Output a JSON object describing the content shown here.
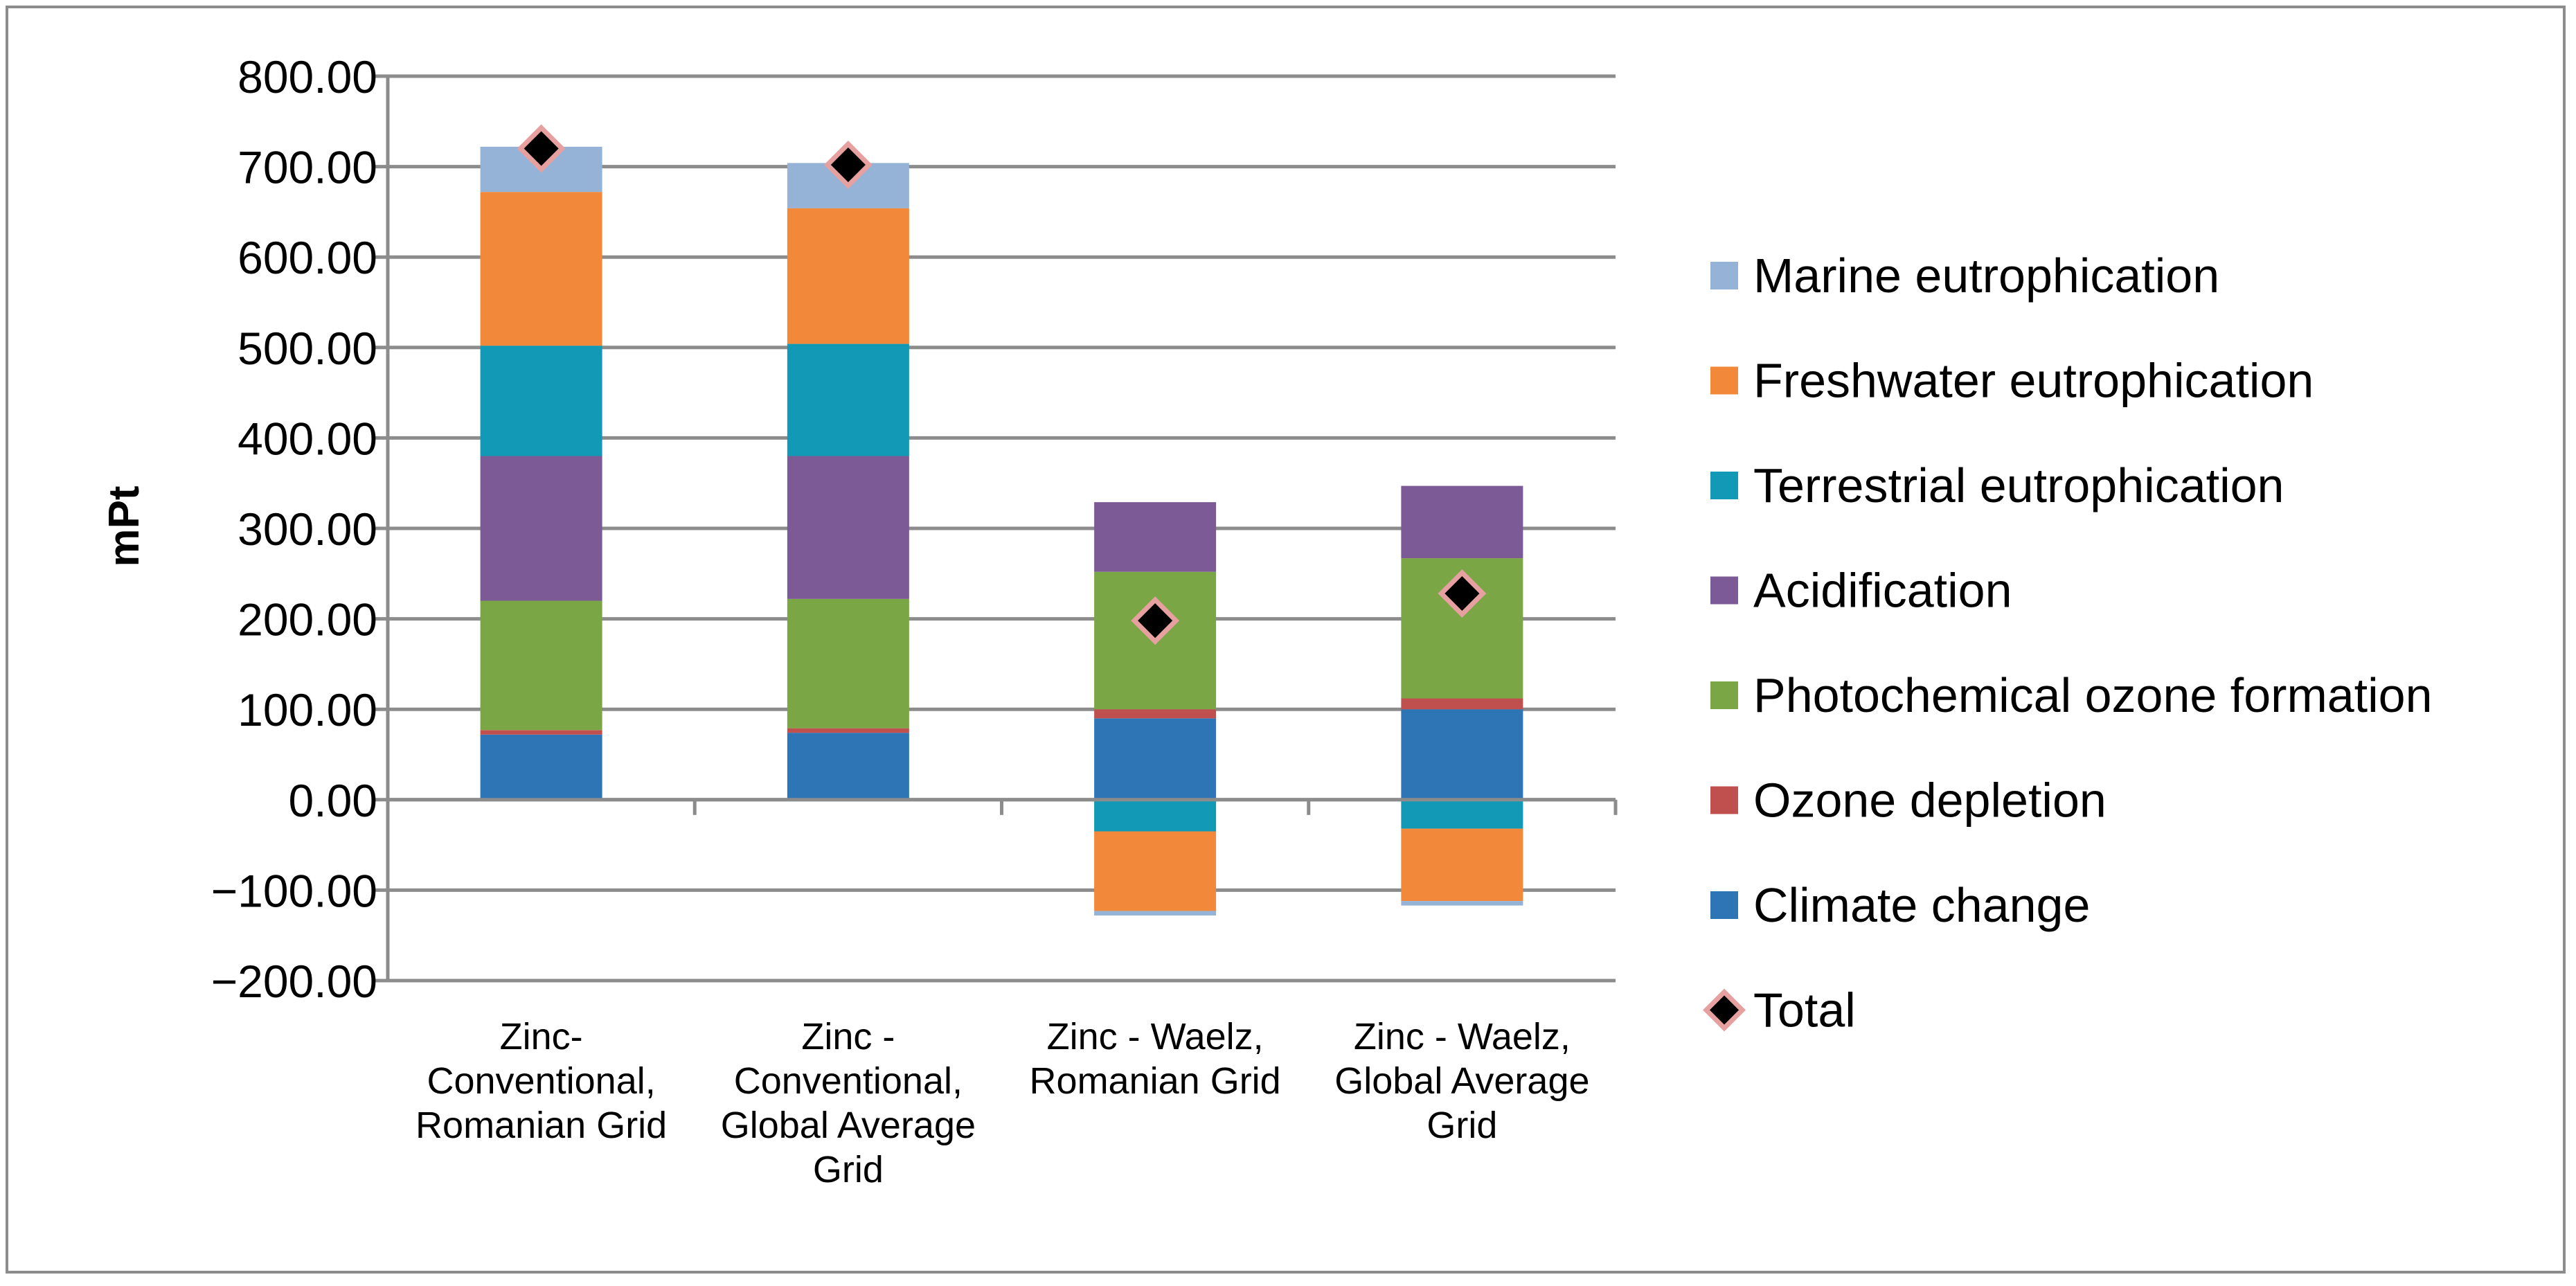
{
  "chart_data": {
    "type": "bar",
    "stacked": true,
    "title": "",
    "xlabel": "",
    "ylabel": "mPt",
    "ylim": [
      -200,
      800
    ],
    "ytick_step": 100,
    "ytick_labels": [
      "800.00",
      "700.00",
      "600.00",
      "500.00",
      "400.00",
      "300.00",
      "200.00",
      "100.00",
      "0.00",
      "−100.00",
      "−200.00"
    ],
    "categories": [
      [
        "Zinc-",
        "Conventional,",
        "Romanian Grid"
      ],
      [
        "Zinc -",
        "Conventional,",
        "Global Average",
        "Grid"
      ],
      [
        "Zinc - Waelz,",
        "Romanian Grid"
      ],
      [
        "Zinc - Waelz,",
        "Global Average",
        "Grid"
      ]
    ],
    "legend_position": "right",
    "series": [
      {
        "name": "Climate change",
        "color": "#2e75b6",
        "values": [
          72,
          74,
          90,
          100
        ]
      },
      {
        "name": "Ozone depletion",
        "color": "#c0504d",
        "values": [
          5,
          5,
          10,
          12
        ]
      },
      {
        "name": "Photochemical ozone formation",
        "color": "#7ba646",
        "values": [
          143,
          143,
          152,
          155
        ]
      },
      {
        "name": "Acidification",
        "color": "#7b5a95",
        "values": [
          160,
          158,
          77,
          80
        ]
      },
      {
        "name": "Terrestrial eutrophication",
        "color": "#1199b5",
        "values": [
          122,
          124,
          -35,
          -32
        ]
      },
      {
        "name": "Freshwater eutrophication",
        "color": "#f2883a",
        "values": [
          170,
          150,
          -88,
          -80
        ]
      },
      {
        "name": "Marine eutrophication",
        "color": "#95b3d7",
        "values": [
          50,
          50,
          -5,
          -5
        ]
      }
    ],
    "total": {
      "name": "Total",
      "marker_fill": "#000000",
      "marker_edge": "#e6a0a0",
      "values": [
        720,
        702,
        198,
        228
      ]
    }
  }
}
